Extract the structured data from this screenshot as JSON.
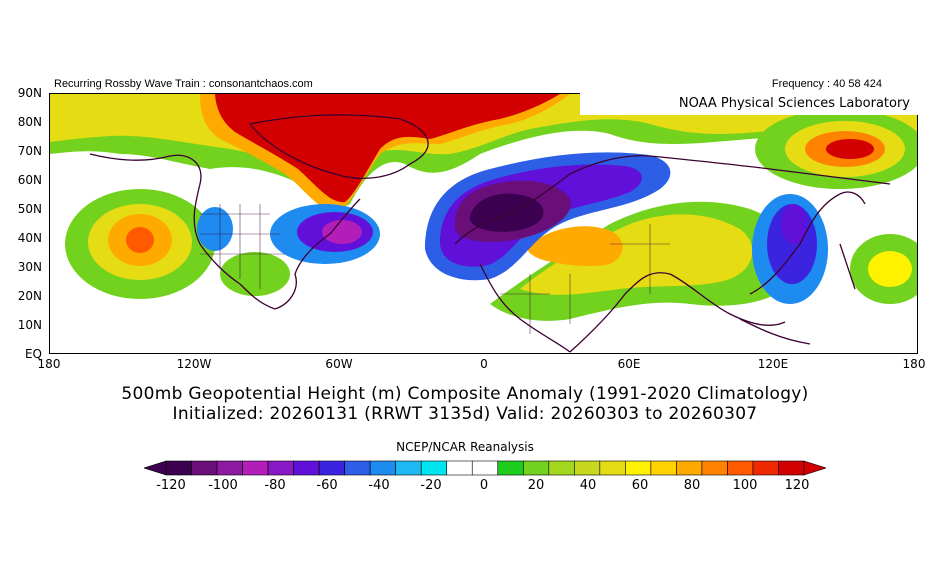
{
  "header": {
    "left_text": "Recurring Rossby Wave Train : consonantchaos.com",
    "right_text": "Frequency : 40 58 424",
    "lab_text": "NOAA Physical Sciences Laboratory"
  },
  "axes": {
    "lat_labels": [
      "90N",
      "80N",
      "70N",
      "60N",
      "50N",
      "40N",
      "30N",
      "20N",
      "10N",
      "EQ"
    ],
    "lon_labels": [
      "180",
      "120W",
      "60W",
      "0",
      "60E",
      "120E",
      "180"
    ]
  },
  "title": {
    "line1": "500mb Geopotential Height (m) Composite Anomaly (1991-2020 Climatology)",
    "line2": "Initialized: 20260131 (RRWT 3135d) Valid: 20260303 to 20260307"
  },
  "source": "NCEP/NCAR Reanalysis",
  "colorbar": {
    "tick_labels": [
      "-120",
      "-100",
      "-80",
      "-60",
      "-40",
      "-20",
      "0",
      "20",
      "40",
      "60",
      "80",
      "100",
      "120"
    ],
    "colors": [
      "#3c0050",
      "#6a0f7a",
      "#8c1aa0",
      "#b31eb8",
      "#8a19c8",
      "#6010d8",
      "#3c23e0",
      "#2d5fe6",
      "#1e8bf0",
      "#1eb9f5",
      "#00e6f0",
      "#ffffff",
      "#ffffff",
      "#1ecc1e",
      "#73d21e",
      "#a3d71e",
      "#c8d81e",
      "#e6dc14",
      "#fff200",
      "#ffd200",
      "#ffaa00",
      "#ff8200",
      "#ff5a00",
      "#f02800",
      "#d20000"
    ]
  },
  "map": {
    "anomaly_colors": {
      "strong_positive": "#d20000",
      "positive": "#f02800",
      "moderate_positive": "#ffaa00",
      "weak_positive": "#e6dc14",
      "slight_positive": "#73d21e",
      "slight_negative": "#1e8bf0",
      "weak_negative": "#3c23e0",
      "moderate_negative": "#6010d8",
      "strong_negative": "#6a0f7a",
      "deep_negative": "#3c0050"
    },
    "coastline_color": "#3c0032"
  }
}
